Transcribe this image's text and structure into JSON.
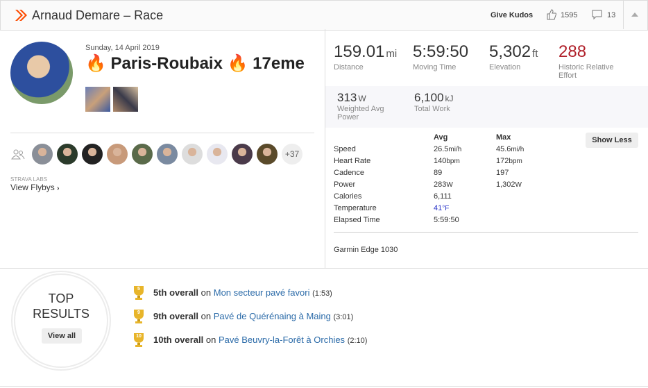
{
  "header": {
    "title": "Arnaud Demare – Race",
    "kudos_button": "Give Kudos",
    "kudos_count": "1595",
    "comment_count": "13"
  },
  "activity": {
    "date": "Sunday, 14 April 2019",
    "name": "🔥 Paris-Roubaix 🔥 17eme"
  },
  "athletes_more": "+37",
  "flybys": {
    "label": "STRAVA LABS",
    "link": "View Flybys"
  },
  "stats": [
    {
      "value": "159.01",
      "unit": "mi",
      "label": "Distance"
    },
    {
      "value": "5:59:50",
      "label": "Moving Time"
    },
    {
      "value": "5,302",
      "unit": "ft",
      "label": "Elevation"
    },
    {
      "value": "288",
      "label": "Historic Relative Effort"
    }
  ],
  "secondary_stats": [
    {
      "value": "313",
      "unit": "W",
      "label": "Weighted Avg Power"
    },
    {
      "value": "6,100",
      "unit": "kJ",
      "label": "Total Work"
    }
  ],
  "details": {
    "columns": [
      "Avg",
      "Max"
    ],
    "toggle": "Show Less",
    "rows": [
      {
        "label": "Speed",
        "avg": "26.5",
        "avg_unit": "mi/h",
        "max": "45.6",
        "max_unit": "mi/h"
      },
      {
        "label": "Heart Rate",
        "avg": "140",
        "avg_unit": "bpm",
        "max": "172",
        "max_unit": "bpm"
      },
      {
        "label": "Cadence",
        "avg": "89",
        "max": "197"
      },
      {
        "label": "Power",
        "avg": "283",
        "avg_unit": "W",
        "max": "1,302",
        "max_unit": "W"
      },
      {
        "label": "Calories",
        "avg": "6,111"
      },
      {
        "label": "Temperature",
        "avg": "41",
        "avg_unit": "°F"
      },
      {
        "label": "Elapsed Time",
        "avg": "5:59:50"
      }
    ],
    "device": "Garmin Edge 1030"
  },
  "top_results": {
    "badge_top": "TOP",
    "badge_bottom": "RESULTS",
    "view_all": "View all",
    "results": [
      {
        "trophy": "5",
        "rank": "5th overall",
        "on": "on",
        "segment": "Mon secteur pavé favori",
        "time": "(1:53)"
      },
      {
        "trophy": "9",
        "rank": "9th overall",
        "on": "on",
        "segment": "Pavé de Quérénaing à Maing",
        "time": "(3:01)"
      },
      {
        "trophy": "10",
        "rank": "10th overall",
        "on": "on",
        "segment": "Pavé Beuvry-la-Forêt à Orchies",
        "time": "(2:10)"
      }
    ]
  }
}
